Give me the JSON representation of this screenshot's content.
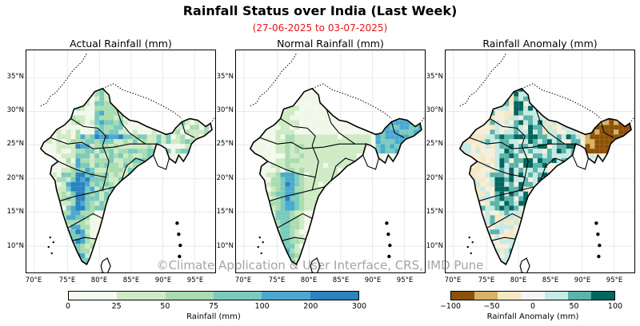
{
  "title": "Rainfall Status over India (Last  Week)",
  "subtitle": "(27-06-2025 to 03-07-2025)",
  "watermark": "©Climate Application & User Interface, CRS, IMD Pune",
  "panels": [
    {
      "title": "Actual Rainfall (mm)",
      "palette": "rain"
    },
    {
      "title": "Normal Rainfall (mm)",
      "palette": "rain"
    },
    {
      "title": "Rainfall Anomaly (mm)",
      "palette": "anomaly"
    }
  ],
  "lat_ticks": [
    "35°N",
    "30°N",
    "25°N",
    "20°N",
    "15°N",
    "10°N"
  ],
  "lon_ticks": [
    "70°E",
    "75°E",
    "80°E",
    "85°E",
    "90°E",
    "95°E"
  ],
  "colorbar_rain": {
    "ticks": [
      "0",
      "25",
      "50",
      "75",
      "100",
      "200",
      "300"
    ],
    "label": "Rainfall (mm)",
    "colors": [
      "#f3faef",
      "#cfebc5",
      "#a9dcb1",
      "#7acbbd",
      "#4ba9d1",
      "#2a84c0"
    ]
  },
  "colorbar_anomaly": {
    "ticks": [
      "−100",
      "−50",
      "0",
      "50",
      "100"
    ],
    "label": "Rainfall Anomaly (mm)",
    "colors": [
      "#8c510a",
      "#d8b365",
      "#f6e8c3",
      "#f5f5f5",
      "#c7eae5",
      "#5ab4ac",
      "#01665e"
    ]
  }
}
